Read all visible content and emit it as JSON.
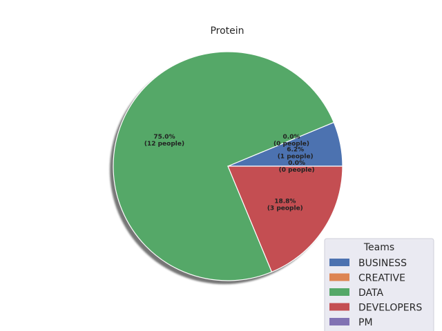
{
  "chart_data": {
    "type": "pie",
    "title": "Protein",
    "categories": [
      "BUSINESS",
      "CREATIVE",
      "DATA",
      "DEVELOPERS",
      "PM"
    ],
    "values": [
      1,
      0,
      12,
      3,
      0
    ],
    "percent_labels": [
      "6.2%\n(1 people)",
      "0.0%\n(0 people)",
      "75.0%\n(12 people)",
      "18.8%\n(3 people)",
      "0.0%\n(0 people)"
    ],
    "colors": [
      "#4c72b0",
      "#dd8452",
      "#55a868",
      "#c44e52",
      "#8172b3"
    ],
    "shadow": true,
    "start_angle_deg": 0,
    "counterclockwise": true,
    "legend": {
      "title": "Teams",
      "placement": "bottom-right"
    }
  }
}
